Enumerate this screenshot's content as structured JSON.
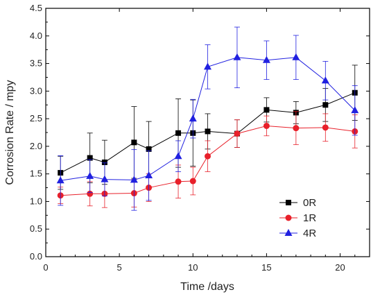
{
  "chart_data": {
    "type": "line",
    "xlabel": "Time /days",
    "ylabel": "Corrosion Rate / mpy",
    "xlim": [
      0,
      22
    ],
    "ylim": [
      0.0,
      4.5
    ],
    "xticks": [
      "0",
      "5",
      "10",
      "15",
      "20"
    ],
    "xtick_values": [
      0,
      5,
      10,
      15,
      20
    ],
    "yticks": [
      "0.0",
      "0.5",
      "1.0",
      "1.5",
      "2.0",
      "2.5",
      "3.0",
      "3.5",
      "4.0",
      "4.5"
    ],
    "ytick_values": [
      0.0,
      0.5,
      1.0,
      1.5,
      2.0,
      2.5,
      3.0,
      3.5,
      4.0,
      4.5
    ],
    "grid": false,
    "legend_position": "bottom-right",
    "series": [
      {
        "name": "0R",
        "color": "#000000",
        "marker": "square",
        "x": [
          1,
          3,
          4,
          6,
          7,
          9,
          10,
          11,
          13,
          15,
          17,
          19,
          21
        ],
        "y": [
          1.52,
          1.79,
          1.71,
          2.07,
          1.95,
          2.24,
          2.24,
          2.27,
          2.23,
          2.66,
          2.61,
          2.75,
          2.97
        ],
        "err": [
          0.3,
          0.45,
          0.4,
          0.65,
          0.5,
          0.62,
          0.6,
          0.32,
          0.25,
          0.22,
          0.2,
          0.3,
          0.5
        ]
      },
      {
        "name": "1R",
        "color": "#e8202a",
        "marker": "circle",
        "x": [
          1,
          3,
          4,
          6,
          7,
          9,
          10,
          11,
          13,
          15,
          17,
          19,
          21
        ],
        "y": [
          1.11,
          1.14,
          1.14,
          1.15,
          1.25,
          1.36,
          1.37,
          1.82,
          2.23,
          2.37,
          2.33,
          2.34,
          2.27
        ],
        "err": [
          0.15,
          0.22,
          0.25,
          0.25,
          0.25,
          0.3,
          0.25,
          0.28,
          0.25,
          0.18,
          0.3,
          0.25,
          0.3
        ]
      },
      {
        "name": "4R",
        "color": "#2020e0",
        "marker": "triangle",
        "x": [
          1,
          3,
          4,
          6,
          7,
          9,
          10,
          11,
          13,
          15,
          17,
          19,
          21
        ],
        "y": [
          1.38,
          1.46,
          1.4,
          1.39,
          1.47,
          1.82,
          2.5,
          3.44,
          3.61,
          3.56,
          3.61,
          3.19,
          2.65
        ],
        "err": [
          0.45,
          0.3,
          0.3,
          0.55,
          0.45,
          0.28,
          0.35,
          0.4,
          0.55,
          0.35,
          0.4,
          0.35,
          0.45
        ]
      }
    ]
  }
}
